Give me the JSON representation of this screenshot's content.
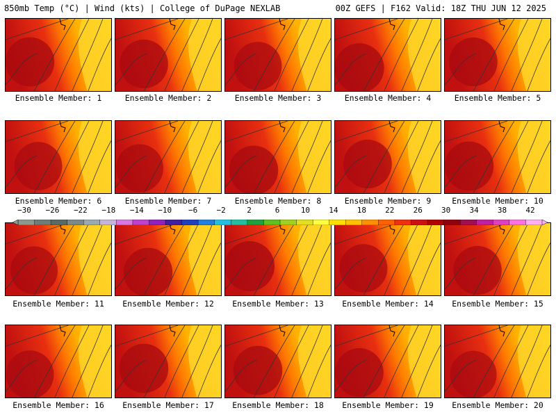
{
  "header": {
    "left": "850mb Temp (°C) | Wind (kts) | College of DuPage NEXLAB",
    "right": "00Z GEFS | F162 Valid: 18Z THU JUN 12 2025"
  },
  "members": [
    {
      "label": "Ensemble Member: 1",
      "warmth": 0.9
    },
    {
      "label": "Ensemble Member: 2",
      "warmth": 0.85
    },
    {
      "label": "Ensemble Member: 3",
      "warmth": 0.8
    },
    {
      "label": "Ensemble Member: 4",
      "warmth": 0.95
    },
    {
      "label": "Ensemble Member: 5",
      "warmth": 0.85
    },
    {
      "label": "Ensemble Member: 6",
      "warmth": 0.8
    },
    {
      "label": "Ensemble Member: 7",
      "warmth": 0.75
    },
    {
      "label": "Ensemble Member: 8",
      "warmth": 0.9
    },
    {
      "label": "Ensemble Member: 9",
      "warmth": 0.85
    },
    {
      "label": "Ensemble Member: 10",
      "warmth": 0.9
    },
    {
      "label": "Ensemble Member: 11",
      "warmth": 0.75
    },
    {
      "label": "Ensemble Member: 12",
      "warmth": 0.9
    },
    {
      "label": "Ensemble Member: 13",
      "warmth": 1.0
    },
    {
      "label": "Ensemble Member: 14",
      "warmth": 0.8
    },
    {
      "label": "Ensemble Member: 15",
      "warmth": 0.85
    },
    {
      "label": "Ensemble Member: 16",
      "warmth": 0.8
    },
    {
      "label": "Ensemble Member: 17",
      "warmth": 0.9
    },
    {
      "label": "Ensemble Member: 18",
      "warmth": 0.9
    },
    {
      "label": "Ensemble Member: 19",
      "warmth": 0.85
    },
    {
      "label": "Ensemble Member: 20",
      "warmth": 0.7
    }
  ],
  "colorbar": {
    "labels": [
      "−30",
      "−26",
      "−22",
      "−18",
      "−14",
      "−10",
      "−6",
      "−2",
      "2",
      "6",
      "10",
      "14",
      "18",
      "22",
      "26",
      "30",
      "34",
      "38",
      "42"
    ],
    "colors": [
      "#8c9a8c",
      "#6e7e76",
      "#5a6a64",
      "#7a8a8a",
      "#9aaab2",
      "#c4b4d8",
      "#d878e0",
      "#c040d0",
      "#9020c0",
      "#4020a0",
      "#2040c0",
      "#2080e0",
      "#20c0e0",
      "#20c0a0",
      "#20a040",
      "#60c020",
      "#a0d020",
      "#e0e020",
      "#ffff40",
      "#ffe000",
      "#ffc000",
      "#ff9000",
      "#ff6000",
      "#f03010",
      "#d01010",
      "#b00000",
      "#900010",
      "#a01050",
      "#c020a0",
      "#e040c0",
      "#ff70e0",
      "#ffb0f0"
    ]
  }
}
